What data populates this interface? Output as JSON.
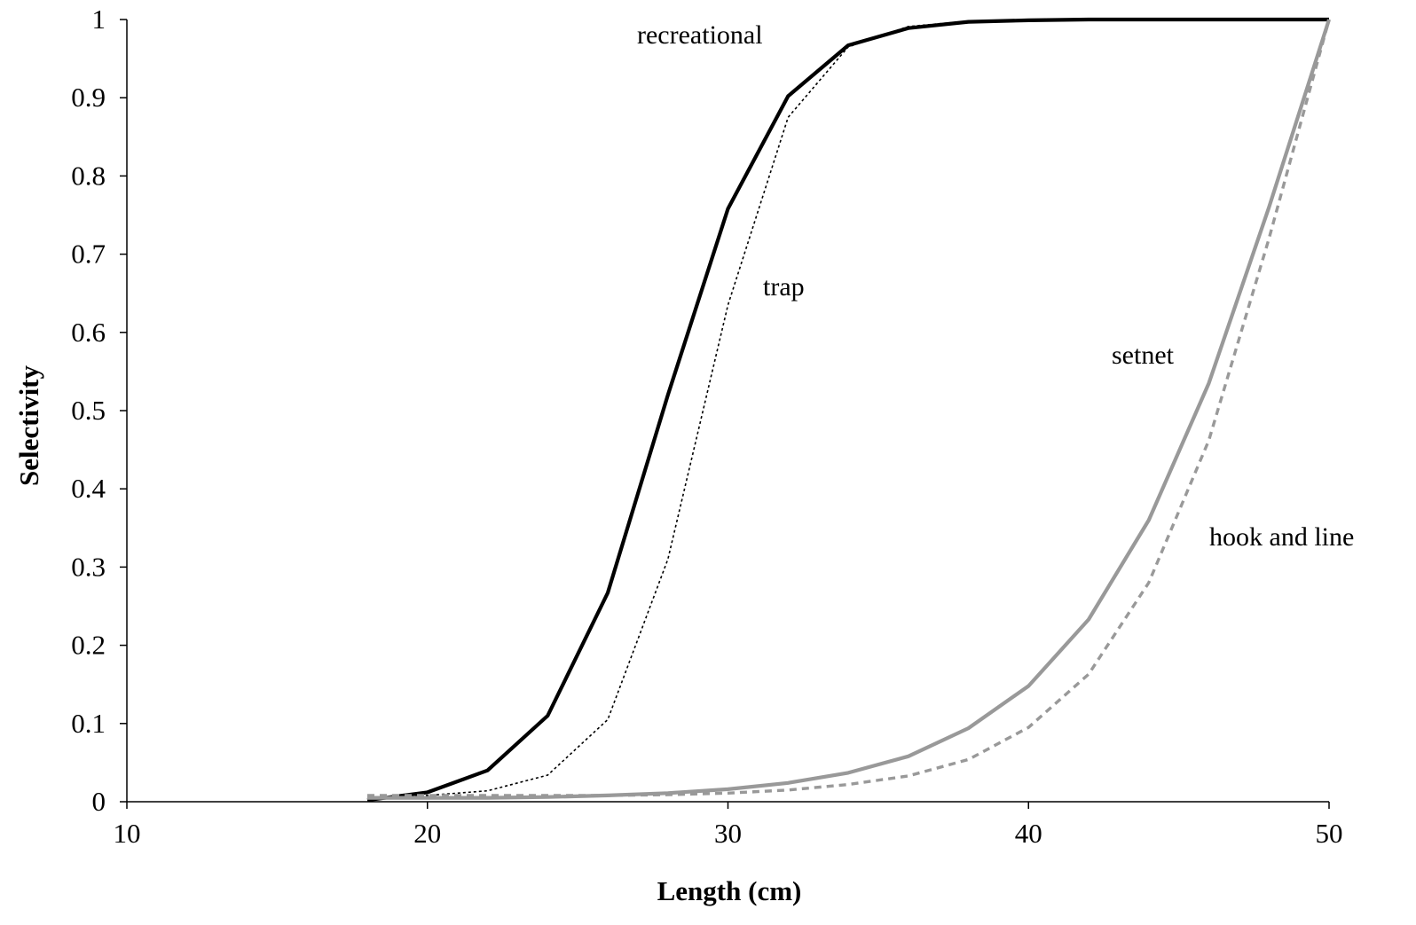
{
  "chart_data": {
    "type": "line",
    "title": "",
    "xlabel": "Length (cm)",
    "ylabel": "Selectivity",
    "xlim": [
      10,
      50
    ],
    "ylim": [
      0,
      1
    ],
    "xticks": [
      10,
      20,
      30,
      40,
      50
    ],
    "yticks": [
      0,
      0.1,
      0.2,
      0.3,
      0.4,
      0.5,
      0.6,
      0.7,
      0.8,
      0.9,
      1
    ],
    "grid": false,
    "legend": "none",
    "series": [
      {
        "name": "recreational",
        "color": "#000000",
        "style": "solid-thick",
        "x": [
          18,
          20,
          22,
          24,
          26,
          28,
          30,
          32,
          34,
          36,
          38,
          40,
          42,
          44,
          46,
          48,
          50
        ],
        "y": [
          0.002,
          0.012,
          0.04,
          0.11,
          0.267,
          0.52,
          0.758,
          0.902,
          0.967,
          0.989,
          0.997,
          0.999,
          1.0,
          1.0,
          1.0,
          1.0,
          1.0
        ]
      },
      {
        "name": "trap",
        "color": "#000000",
        "style": "dotted-thin",
        "x": [
          18,
          20,
          22,
          24,
          26,
          28,
          30,
          32,
          34,
          36,
          38,
          40,
          42,
          44,
          46,
          48,
          50
        ],
        "y": [
          0.005,
          0.008,
          0.014,
          0.034,
          0.105,
          0.31,
          0.635,
          0.875,
          0.965,
          0.991,
          0.998,
          0.999,
          1.0,
          1.0,
          1.0,
          1.0,
          1.0
        ]
      },
      {
        "name": "setnet",
        "color": "#999999",
        "style": "solid-thick",
        "x": [
          18,
          20,
          22,
          24,
          26,
          28,
          30,
          32,
          34,
          36,
          38,
          40,
          42,
          44,
          46,
          48,
          50
        ],
        "y": [
          0.005,
          0.005,
          0.005,
          0.006,
          0.008,
          0.011,
          0.016,
          0.024,
          0.037,
          0.058,
          0.094,
          0.148,
          0.233,
          0.36,
          0.535,
          0.76,
          1.0
        ]
      },
      {
        "name": "hook and line",
        "color": "#999999",
        "style": "dashed",
        "x": [
          18,
          20,
          22,
          24,
          26,
          28,
          30,
          32,
          34,
          36,
          38,
          40,
          42,
          44,
          46,
          48,
          50
        ],
        "y": [
          0.008,
          0.008,
          0.008,
          0.008,
          0.008,
          0.009,
          0.011,
          0.015,
          0.022,
          0.033,
          0.054,
          0.095,
          0.163,
          0.28,
          0.462,
          0.72,
          1.0
        ]
      }
    ],
    "annotations": [
      {
        "text": "recreational",
        "series": "recreational"
      },
      {
        "text": "trap",
        "series": "trap"
      },
      {
        "text": "setnet",
        "series": "setnet"
      },
      {
        "text": "hook and line",
        "series": "hook and line"
      }
    ]
  }
}
